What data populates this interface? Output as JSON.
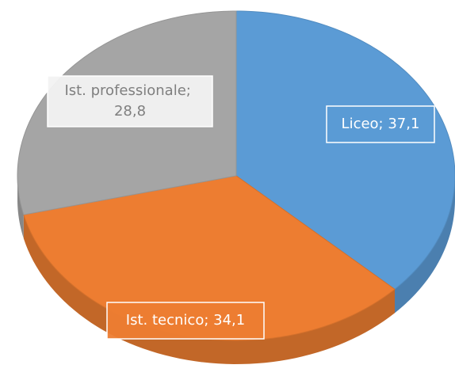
{
  "chart_data": {
    "type": "pie",
    "categories": [
      "Liceo",
      "Ist. tecnico",
      "Ist. professionale"
    ],
    "values": [
      37.1,
      34.1,
      28.8
    ],
    "value_labels": [
      "Liceo; 37,1",
      "Ist. tecnico; 34,1",
      "Ist. professionale; 28,8"
    ],
    "colors": [
      "#5b9bd5",
      "#ed7d31",
      "#a5a5a5"
    ]
  }
}
